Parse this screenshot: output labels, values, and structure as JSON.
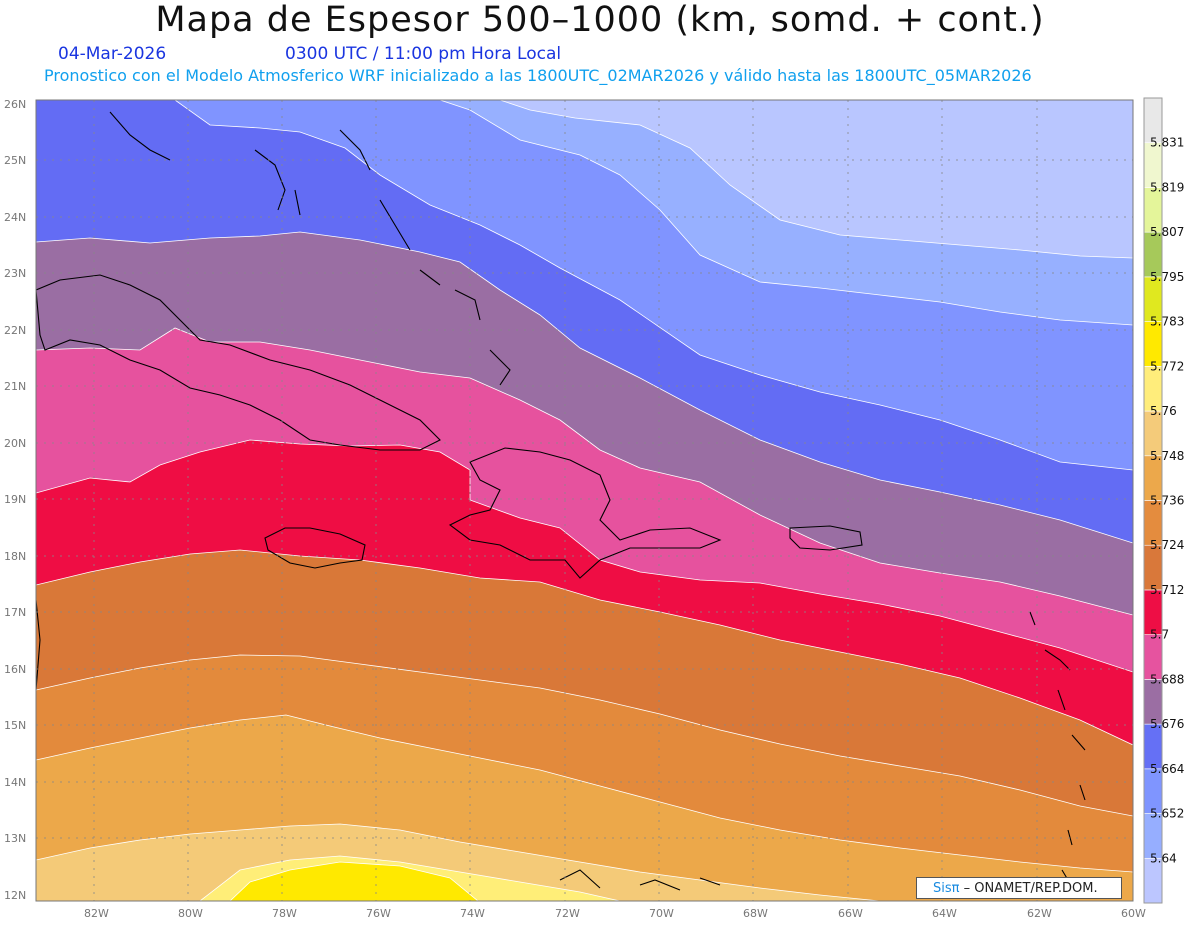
{
  "header": {
    "title": "Mapa de Espesor 500–1000 (km, somd. + cont.)",
    "date": "04-Mar-2026",
    "time": "0300 UTC / 11:00 pm Hora Local",
    "subtitle": "Pronostico con el Modelo Atmosferico WRF inicializado a las 1800UTC_02MAR2026 y válido hasta las  1800UTC_05MAR2026"
  },
  "map": {
    "lat_labels": [
      "26N",
      "25N",
      "24N",
      "23N",
      "22N",
      "21N",
      "20N",
      "19N",
      "18N",
      "17N",
      "16N",
      "15N",
      "14N",
      "13N",
      "12N"
    ],
    "lon_labels": [
      "82W",
      "80W",
      "78W",
      "76W",
      "74W",
      "72W",
      "70W",
      "68W",
      "66W",
      "64W",
      "62W",
      "60W"
    ],
    "lat_range": [
      12,
      26
    ],
    "lon_range": [
      -83.2,
      -60
    ],
    "grid": true,
    "band_colors": [
      "#ffe900",
      "#ffee78",
      "#f4ca78",
      "#eca84a",
      "#e38a3c",
      "#d97838",
      "#ef0d44",
      "#e6529e",
      "#9a6ea3",
      "#636cf4",
      "#8094ff",
      "#97b0ff",
      "#b9c6ff"
    ]
  },
  "colorbar": {
    "levels": [
      "5.64",
      "5.652",
      "5.664",
      "5.676",
      "5.688",
      "5.7",
      "5.712",
      "5.724",
      "5.736",
      "5.748",
      "5.76",
      "5.772",
      "5.783",
      "5.795",
      "5.807",
      "5.819",
      "5.831"
    ],
    "colors": [
      "#bcc6ff",
      "#96aeff",
      "#7f95ff",
      "#6570f5",
      "#9b6ea3",
      "#e6539f",
      "#ee0e45",
      "#d9783a",
      "#e48c3e",
      "#eca84b",
      "#f4cb7a",
      "#ffed7b",
      "#ffe900",
      "#e0e81f",
      "#a6c95a",
      "#e4f59a",
      "#f0f7cf",
      "#e8e8e8"
    ]
  },
  "credit": {
    "brand": "Sisπ",
    "text": " – ONAMET/REP.DOM."
  }
}
